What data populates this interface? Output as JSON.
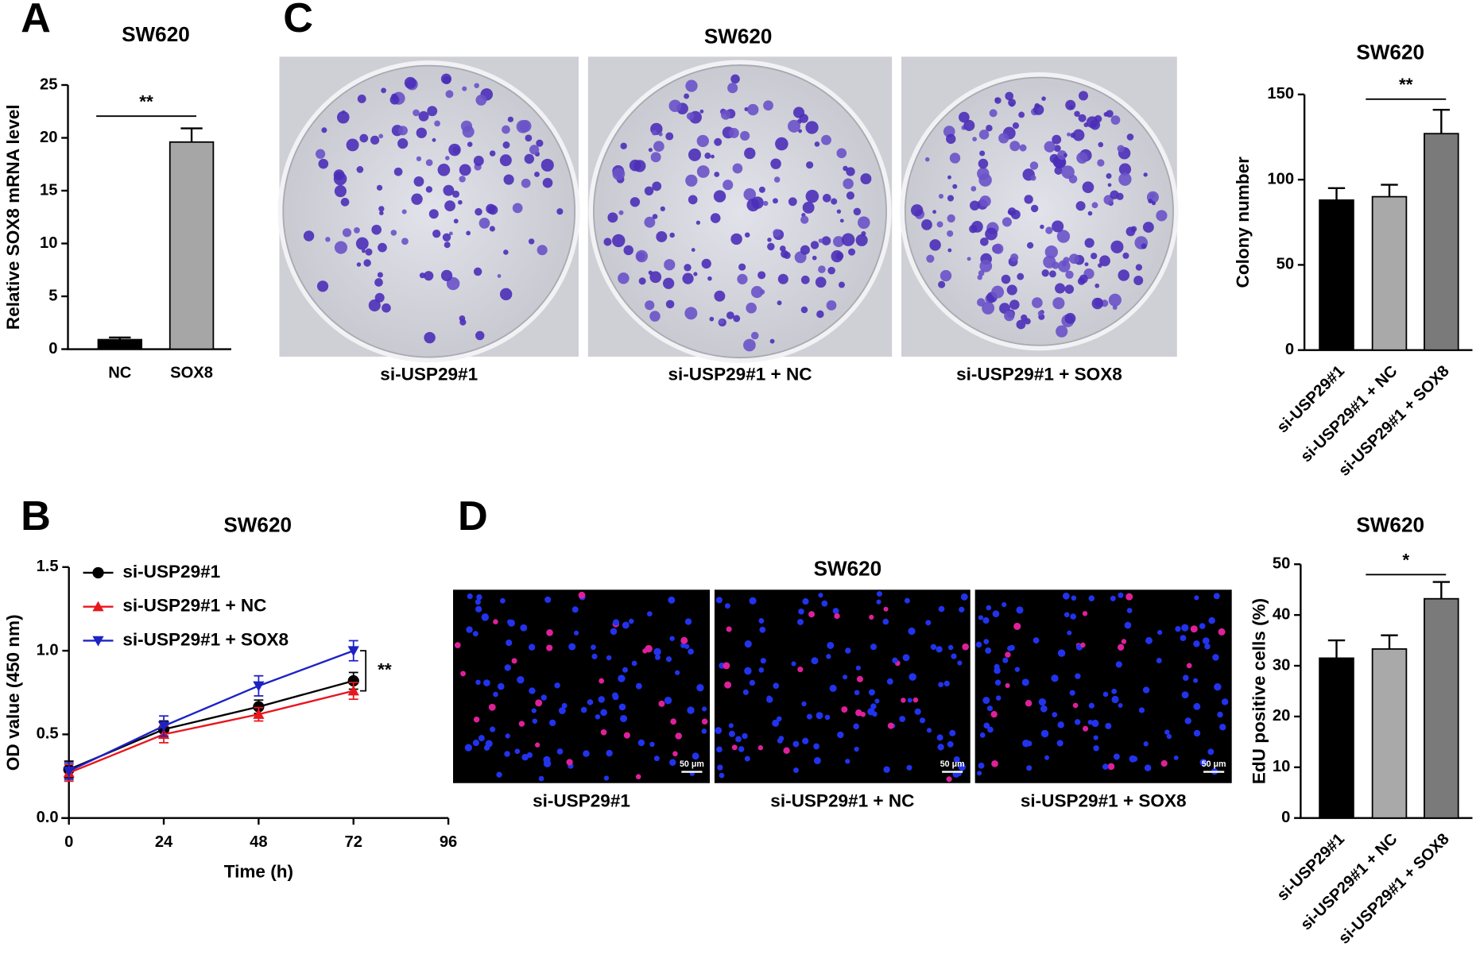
{
  "figure": {
    "panel_labels": [
      "A",
      "B",
      "C",
      "D"
    ],
    "colony_title": "SW620",
    "colony_captions": [
      "si-USP29#1",
      "si-USP29#1 + NC",
      "si-USP29#1 + SOX8"
    ],
    "edu_title": "SW620",
    "edu_captions": [
      "si-USP29#1",
      "si-USP29#1 + NC",
      "si-USP29#1 + SOX8"
    ],
    "scale_bar_label": "50 μm"
  },
  "chart_data": [
    {
      "type": "bar",
      "title": "SW620",
      "y_label": "Relative SOX8 mRNA level",
      "categories": [
        "NC",
        "SOX8"
      ],
      "values": [
        0.9,
        19.6
      ],
      "errors": [
        0.2,
        1.3
      ],
      "colors": [
        "#000000",
        "#a6a6a6"
      ],
      "ylim": [
        0,
        25
      ],
      "yticks": [
        0,
        5,
        10,
        15,
        20,
        25
      ],
      "annotation": "**"
    },
    {
      "type": "line",
      "title": "SW620",
      "x_label": "Time (h)",
      "y_label": "OD value (450 nm)",
      "x": [
        0,
        24,
        48,
        72
      ],
      "xlim": [
        0,
        96
      ],
      "xticks": [
        0,
        24,
        48,
        72,
        96
      ],
      "ylim": [
        0,
        1.5
      ],
      "yticks": [
        {
          "value": 0,
          "label": "0.0"
        },
        0.5,
        {
          "value": 1,
          "label": "1.0"
        },
        1.5
      ],
      "legend": "upper-left",
      "annotation": "**",
      "series": [
        {
          "name": "si-USP29#1",
          "color": "#000000",
          "marker": "circle",
          "values": [
            0.29,
            0.53,
            0.665,
            0.82
          ],
          "errors": [
            0.05,
            0.05,
            0.04,
            0.05
          ]
        },
        {
          "name": "si-USP29#1 + NC",
          "color": "#e8161d",
          "marker": "triangle-up",
          "values": [
            0.27,
            0.5,
            0.62,
            0.76
          ],
          "errors": [
            0.05,
            0.05,
            0.04,
            0.05
          ]
        },
        {
          "name": "si-USP29#1 + SOX8",
          "color": "#1d22c4",
          "marker": "triangle-down",
          "values": [
            0.28,
            0.55,
            0.79,
            1.0
          ],
          "errors": [
            0.05,
            0.06,
            0.06,
            0.06
          ]
        }
      ]
    },
    {
      "type": "bar",
      "title": "SW620",
      "y_label": "Colony number",
      "categories": [
        "si-USP29#1",
        "si-USP29#1 + NC",
        "si-USP29#1 + SOX8"
      ],
      "values": [
        88,
        90,
        127
      ],
      "errors": [
        7,
        7,
        14
      ],
      "colors": [
        "#000000",
        "#a9a9a9",
        "#7a7a7a"
      ],
      "ylim": [
        0,
        150
      ],
      "yticks": [
        0,
        50,
        100,
        150
      ],
      "annotation": "**"
    },
    {
      "type": "bar",
      "title": "SW620",
      "y_label": "EdU positive cells (%)",
      "categories": [
        "si-USP29#1",
        "si-USP29#1 + NC",
        "si-USP29#1 + SOX8"
      ],
      "values": [
        31.5,
        33.3,
        43.2
      ],
      "errors": [
        3.5,
        2.7,
        3.3
      ],
      "colors": [
        "#000000",
        "#a9a9a9",
        "#7a7a7a"
      ],
      "ylim": [
        0,
        50
      ],
      "yticks": [
        0,
        10,
        20,
        30,
        40,
        50
      ],
      "annotation": "*"
    }
  ]
}
